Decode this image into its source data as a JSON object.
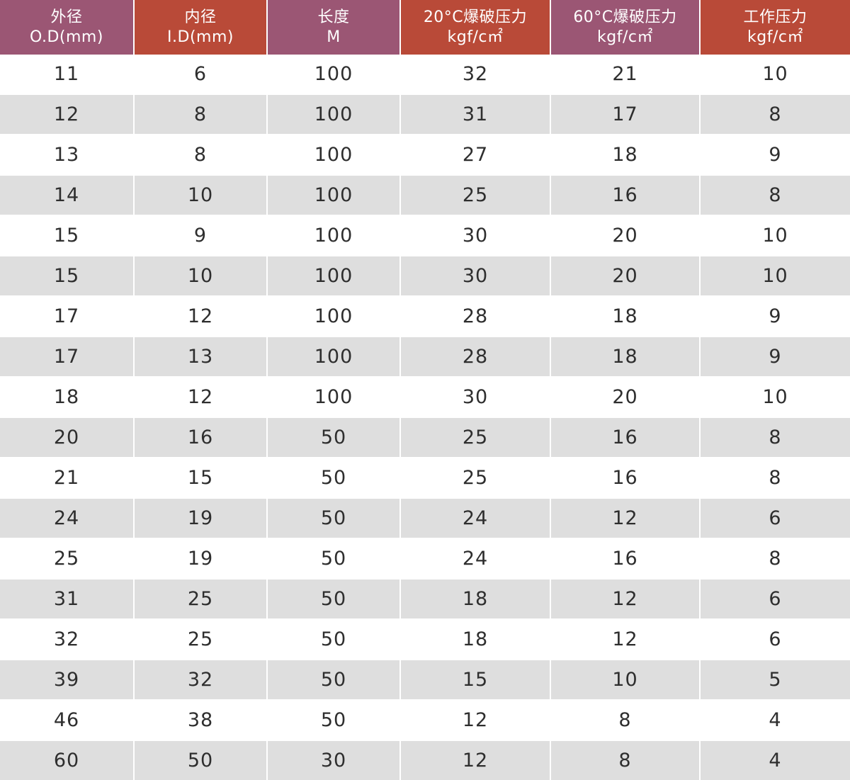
{
  "colors": {
    "header_purple": "#9b5674",
    "header_red": "#b94a38",
    "row_alt": "#dedede",
    "row_plain": "#ffffff",
    "text": "#2e2e2e"
  },
  "headers": [
    {
      "line1": "外径",
      "line2": "O.D(mm)",
      "color": "#9b5674"
    },
    {
      "line1": "内径",
      "line2": "I.D(mm)",
      "color": "#b94a38"
    },
    {
      "line1": "长度",
      "line2": "M",
      "color": "#9b5674"
    },
    {
      "line1": "20°C爆破压力",
      "line2": "kgf/c㎡",
      "color": "#b94a38"
    },
    {
      "line1": "60°C爆破压力",
      "line2": "kgf/c㎡",
      "color": "#9b5674"
    },
    {
      "line1": "工作压力",
      "line2": "kgf/c㎡",
      "color": "#b94a38"
    }
  ],
  "rows": [
    [
      "11",
      "6",
      "100",
      "32",
      "21",
      "10"
    ],
    [
      "12",
      "8",
      "100",
      "31",
      "17",
      "8"
    ],
    [
      "13",
      "8",
      "100",
      "27",
      "18",
      "9"
    ],
    [
      "14",
      "10",
      "100",
      "25",
      "16",
      "8"
    ],
    [
      "15",
      "9",
      "100",
      "30",
      "20",
      "10"
    ],
    [
      "15",
      "10",
      "100",
      "30",
      "20",
      "10"
    ],
    [
      "17",
      "12",
      "100",
      "28",
      "18",
      "9"
    ],
    [
      "17",
      "13",
      "100",
      "28",
      "18",
      "9"
    ],
    [
      "18",
      "12",
      "100",
      "30",
      "20",
      "10"
    ],
    [
      "20",
      "16",
      "50",
      "25",
      "16",
      "8"
    ],
    [
      "21",
      "15",
      "50",
      "25",
      "16",
      "8"
    ],
    [
      "24",
      "19",
      "50",
      "24",
      "12",
      "6"
    ],
    [
      "25",
      "19",
      "50",
      "24",
      "16",
      "8"
    ],
    [
      "31",
      "25",
      "50",
      "18",
      "12",
      "6"
    ],
    [
      "32",
      "25",
      "50",
      "18",
      "12",
      "6"
    ],
    [
      "39",
      "32",
      "50",
      "15",
      "10",
      "5"
    ],
    [
      "46",
      "38",
      "50",
      "12",
      "8",
      "4"
    ],
    [
      "60",
      "50",
      "30",
      "12",
      "8",
      "4"
    ]
  ]
}
